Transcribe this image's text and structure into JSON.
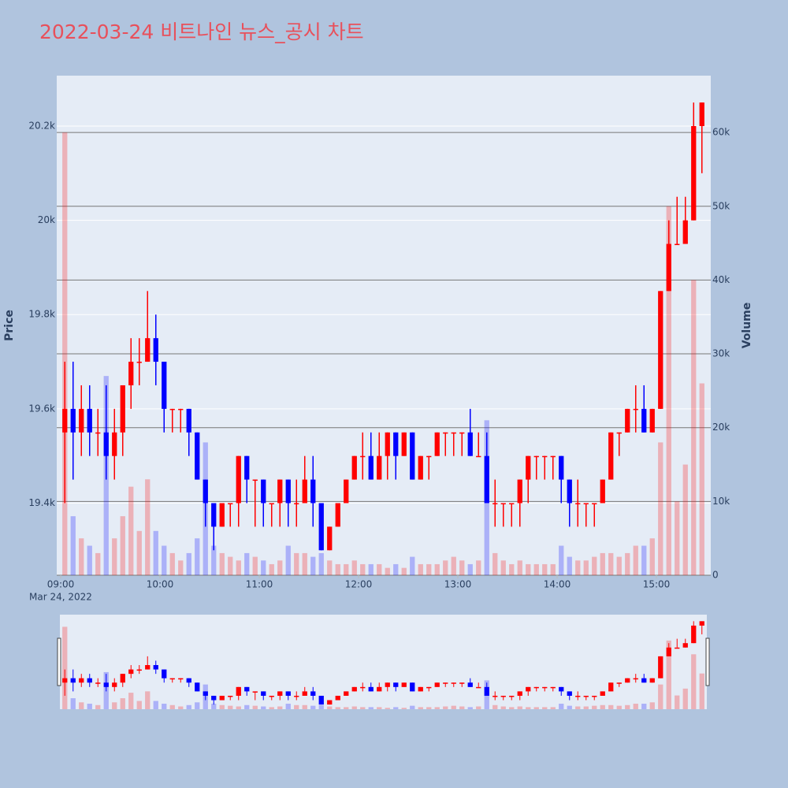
{
  "chart_data": {
    "type": "candlestick",
    "title": "2022-03-24 비트나인 뉴스_공시 차트",
    "y_label": "Price",
    "y2_label": "Volume",
    "x_date_label": "Mar 24, 2022",
    "increasing_color": "#ff0000",
    "decreasing_color": "#0000ff",
    "x": [
      "09:00",
      "09:05",
      "09:10",
      "09:15",
      "09:20",
      "09:25",
      "09:30",
      "09:35",
      "09:40",
      "09:45",
      "09:50",
      "09:55",
      "10:00",
      "10:05",
      "10:10",
      "10:15",
      "10:20",
      "10:25",
      "10:30",
      "10:35",
      "10:40",
      "10:45",
      "10:50",
      "10:55",
      "11:00",
      "11:05",
      "11:10",
      "11:15",
      "11:20",
      "11:25",
      "11:30",
      "11:35",
      "11:40",
      "11:45",
      "11:50",
      "11:55",
      "12:00",
      "12:05",
      "12:10",
      "12:15",
      "12:20",
      "12:25",
      "12:30",
      "12:35",
      "12:40",
      "12:45",
      "12:50",
      "12:55",
      "13:00",
      "13:05",
      "13:10",
      "13:15",
      "13:20",
      "13:25",
      "13:30",
      "13:35",
      "13:40",
      "13:45",
      "13:50",
      "13:55",
      "14:00",
      "14:05",
      "14:10",
      "14:15",
      "14:20",
      "14:25",
      "14:30",
      "14:35",
      "14:40",
      "14:45",
      "14:50",
      "14:55",
      "15:00",
      "15:05",
      "15:10",
      "15:15",
      "15:20",
      "15:25"
    ],
    "open": [
      19550,
      19600,
      19550,
      19600,
      19550,
      19550,
      19500,
      19550,
      19650,
      19700,
      19700,
      19750,
      19700,
      19600,
      19600,
      19600,
      19550,
      19450,
      19400,
      19350,
      19400,
      19400,
      19500,
      19450,
      19450,
      19400,
      19400,
      19450,
      19400,
      19400,
      19450,
      19400,
      19300,
      19350,
      19400,
      19450,
      19500,
      19500,
      19450,
      19500,
      19550,
      19500,
      19550,
      19450,
      19500,
      19500,
      19550,
      19550,
      19550,
      19550,
      19500,
      19500,
      19400,
      19400,
      19400,
      19400,
      19450,
      19500,
      19500,
      19500,
      19500,
      19450,
      19400,
      19400,
      19400,
      19400,
      19450,
      19550,
      19550,
      19600,
      19600,
      19550,
      19600,
      19850,
      19950,
      19950,
      20000,
      20200
    ],
    "high": [
      19700,
      19700,
      19650,
      19650,
      19600,
      19650,
      19600,
      19650,
      19750,
      19750,
      19850,
      19800,
      19700,
      19600,
      19600,
      19600,
      19550,
      19450,
      19400,
      19400,
      19400,
      19500,
      19500,
      19450,
      19450,
      19400,
      19450,
      19450,
      19450,
      19500,
      19500,
      19400,
      19350,
      19400,
      19450,
      19500,
      19550,
      19550,
      19550,
      19550,
      19550,
      19550,
      19550,
      19500,
      19500,
      19550,
      19550,
      19550,
      19550,
      19600,
      19550,
      19550,
      19450,
      19400,
      19400,
      19450,
      19500,
      19500,
      19500,
      19500,
      19500,
      19450,
      19450,
      19400,
      19400,
      19450,
      19550,
      19550,
      19600,
      19650,
      19650,
      19600,
      19850,
      20000,
      20050,
      20050,
      20250,
      20250
    ],
    "low": [
      19400,
      19450,
      19500,
      19500,
      19500,
      19450,
      19450,
      19500,
      19600,
      19650,
      19700,
      19650,
      19550,
      19550,
      19550,
      19500,
      19450,
      19350,
      19300,
      19350,
      19350,
      19350,
      19400,
      19350,
      19350,
      19350,
      19350,
      19350,
      19350,
      19400,
      19350,
      19300,
      19300,
      19350,
      19400,
      19450,
      19450,
      19450,
      19450,
      19450,
      19450,
      19500,
      19450,
      19450,
      19450,
      19500,
      19500,
      19500,
      19500,
      19500,
      19500,
      19400,
      19350,
      19350,
      19350,
      19350,
      19400,
      19450,
      19450,
      19450,
      19400,
      19350,
      19350,
      19350,
      19350,
      19400,
      19450,
      19500,
      19550,
      19550,
      19550,
      19550,
      19600,
      19850,
      19950,
      19950,
      20000,
      20100
    ],
    "close": [
      19600,
      19550,
      19600,
      19550,
      19550,
      19500,
      19550,
      19650,
      19700,
      19700,
      19750,
      19700,
      19600,
      19600,
      19600,
      19550,
      19450,
      19400,
      19350,
      19400,
      19400,
      19500,
      19450,
      19450,
      19400,
      19400,
      19450,
      19400,
      19400,
      19450,
      19400,
      19300,
      19350,
      19400,
      19450,
      19500,
      19500,
      19450,
      19500,
      19550,
      19500,
      19550,
      19450,
      19500,
      19500,
      19550,
      19550,
      19550,
      19550,
      19500,
      19500,
      19400,
      19400,
      19400,
      19400,
      19450,
      19500,
      19500,
      19500,
      19500,
      19450,
      19400,
      19400,
      19400,
      19400,
      19450,
      19550,
      19550,
      19600,
      19600,
      19550,
      19600,
      19850,
      19950,
      19950,
      20000,
      20200,
      20250
    ],
    "volume": [
      60000,
      8000,
      5000,
      4000,
      3000,
      27000,
      5000,
      8000,
      12000,
      6000,
      13000,
      6000,
      4000,
      3000,
      2000,
      3000,
      5000,
      18000,
      4000,
      3000,
      2500,
      2000,
      3000,
      2500,
      2000,
      1500,
      2000,
      4000,
      3000,
      3000,
      2500,
      3000,
      2000,
      1500,
      1500,
      2000,
      1500,
      1500,
      1500,
      1000,
      1500,
      1000,
      2500,
      1500,
      1500,
      1500,
      2000,
      2500,
      2000,
      1500,
      2000,
      21000,
      3000,
      2000,
      1500,
      2000,
      1500,
      1500,
      1500,
      1500,
      4000,
      2500,
      2000,
      2000,
      2500,
      3000,
      3000,
      2500,
      3000,
      4000,
      4000,
      5000,
      18000,
      50000,
      10000,
      15000,
      40000,
      26000
    ],
    "xlim": [
      "09:00",
      "15:30"
    ],
    "xticks": [
      "09:00",
      "10:00",
      "11:00",
      "12:00",
      "13:00",
      "14:00",
      "15:00"
    ],
    "ylim": [
      19247,
      20307
    ],
    "yticks": [
      {
        "value": 19400,
        "label": "19.4k"
      },
      {
        "value": 19600,
        "label": "19.6k"
      },
      {
        "value": 19800,
        "label": "19.8k"
      },
      {
        "value": 20000,
        "label": "20k"
      },
      {
        "value": 20200,
        "label": "20.2k"
      }
    ],
    "y2lim": [
      0,
      67700
    ],
    "y2ticks": [
      0,
      {
        "value": 10000,
        "label": "10k"
      },
      {
        "value": 20000,
        "label": "20k"
      },
      {
        "value": 30000,
        "label": "30k"
      },
      {
        "value": 40000,
        "label": "40k"
      },
      {
        "value": 50000,
        "label": "50k"
      },
      {
        "value": 60000,
        "label": "60k"
      }
    ]
  }
}
